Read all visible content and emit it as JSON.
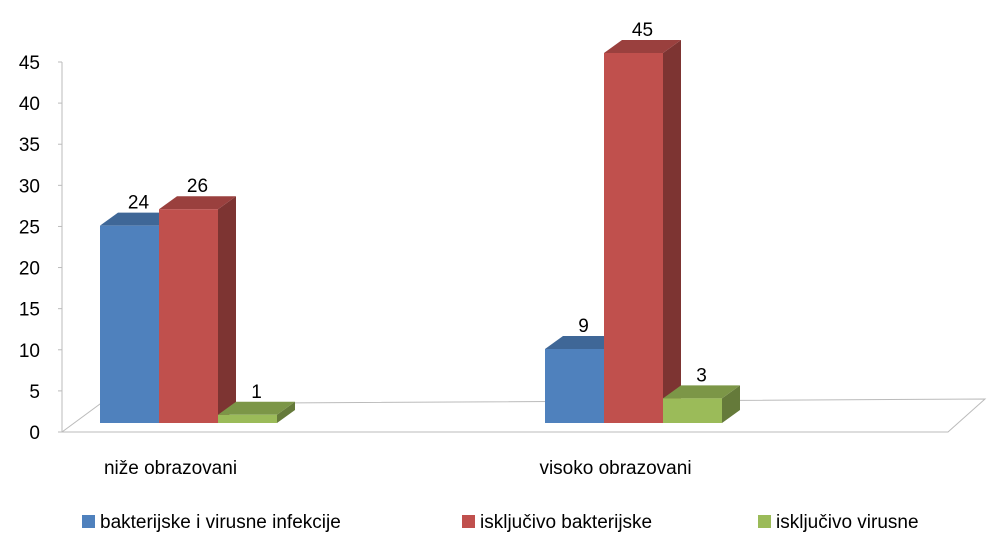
{
  "chart_data": {
    "type": "bar3d",
    "categories": [
      "niže obrazovani",
      "visoko obrazovani"
    ],
    "series": [
      {
        "name": "bakterijske i virusne infekcije",
        "color": "#4f81bd",
        "values": [
          24,
          9
        ]
      },
      {
        "name": "isključivo bakterijske",
        "color": "#c0504d",
        "values": [
          26,
          45
        ]
      },
      {
        "name": "isključivo virusne",
        "color": "#9bbb59",
        "values": [
          1,
          3
        ]
      }
    ],
    "ylim": [
      0,
      45
    ],
    "yticks": [
      0,
      5,
      10,
      15,
      20,
      25,
      30,
      35,
      40,
      45
    ],
    "legend": "bottom"
  }
}
